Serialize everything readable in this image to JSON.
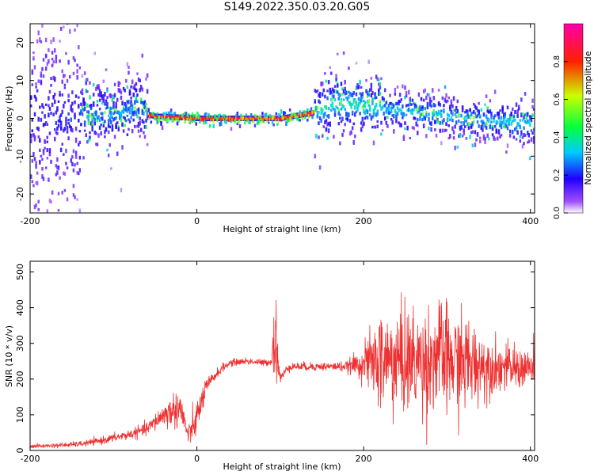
{
  "title": "S149.2022.350.03.20.G05",
  "chart_data": [
    {
      "type": "heatmap",
      "xlabel": "Height of straight line (km)",
      "ylabel": "Frequency (Hz)",
      "xlim": [
        -200,
        405
      ],
      "ylim": [
        -25,
        25
      ],
      "xticks": [
        -200,
        0,
        200,
        400
      ],
      "yticks": [
        -20,
        -10,
        0,
        10,
        20
      ],
      "colorbar": {
        "label": "Normalized spectral amplitude",
        "range": [
          0,
          1
        ],
        "ticks": [
          0.0,
          0.2,
          0.4,
          0.6,
          0.8
        ],
        "colors": [
          "#ffffff",
          "#8000ff",
          "#0000ff",
          "#00ffff",
          "#00ff00",
          "#ffff00",
          "#ff0000",
          "#ff00aa"
        ]
      },
      "ridge_center_hz": {
        "x": [
          -200,
          -150,
          -120,
          -100,
          -80,
          -70,
          -60,
          -50,
          -40,
          0,
          40,
          100,
          140,
          160,
          180,
          200,
          240,
          280,
          320,
          360,
          405
        ],
        "y": [
          0,
          0,
          1,
          1,
          2,
          4,
          1,
          0.5,
          0.5,
          0,
          0,
          0,
          1.5,
          4,
          4,
          3.5,
          2,
          1.5,
          0,
          -0.5,
          -1.5
        ]
      }
    },
    {
      "type": "line",
      "xlabel": "Height of straight line (km)",
      "ylabel": "SNR (10 * v/v)",
      "xlim": [
        -200,
        405
      ],
      "ylim": [
        0,
        530
      ],
      "xticks": [
        -200,
        0,
        200,
        400
      ],
      "yticks": [
        0,
        100,
        200,
        300,
        400,
        500
      ],
      "series": [
        {
          "color": "#ee3030",
          "x": [
            -200,
            -180,
            -160,
            -140,
            -120,
            -100,
            -80,
            -60,
            -50,
            -40,
            -30,
            -20,
            -10,
            0,
            10,
            20,
            30,
            40,
            50,
            60,
            70,
            80,
            90,
            92,
            95,
            100,
            110,
            120,
            140,
            160,
            180,
            200,
            220,
            240,
            260,
            280,
            290,
            300,
            320,
            340,
            360,
            380,
            400,
            405
          ],
          "y": [
            12,
            13,
            15,
            18,
            25,
            35,
            45,
            60,
            80,
            100,
            110,
            120,
            40,
            90,
            170,
            205,
            230,
            245,
            248,
            250,
            248,
            245,
            250,
            330,
            300,
            200,
            235,
            235,
            235,
            235,
            235,
            245,
            250,
            250,
            250,
            250,
            270,
            250,
            245,
            240,
            235,
            230,
            230,
            230
          ],
          "spread": [
            6,
            6,
            7,
            8,
            10,
            12,
            14,
            18,
            25,
            35,
            45,
            55,
            30,
            50,
            30,
            15,
            12,
            10,
            10,
            10,
            10,
            10,
            10,
            120,
            110,
            15,
            12,
            12,
            12,
            12,
            15,
            50,
            140,
            150,
            150,
            150,
            160,
            150,
            140,
            100,
            70,
            60,
            60,
            60
          ]
        }
      ]
    }
  ]
}
